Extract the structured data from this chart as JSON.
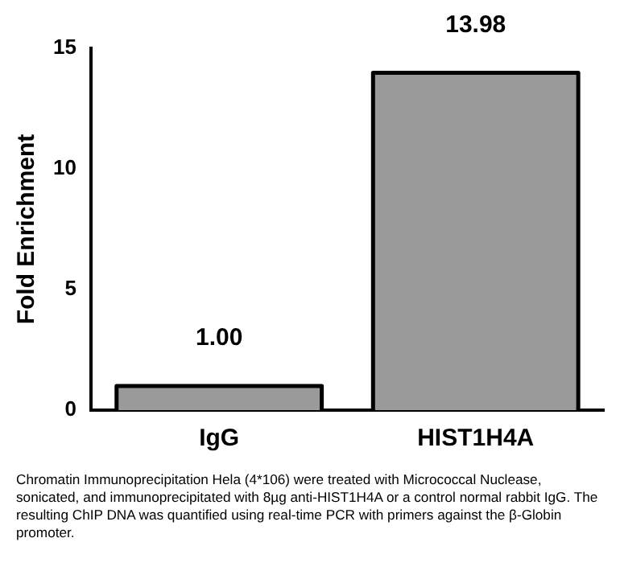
{
  "chart_data": {
    "type": "bar",
    "ylabel": "Fold Enrichment",
    "categories": [
      "IgG",
      "HIST1H4A"
    ],
    "values": [
      1.0,
      13.98
    ],
    "color": "#9a9a9a",
    "value_labels": [
      "1.00",
      "13.98"
    ],
    "ylim": [
      0,
      15
    ],
    "yticks": [
      0,
      5,
      10,
      15
    ],
    "grid": false,
    "annotations": [
      "Chromatin Immunoprecipitation Hela (4*106) were treated with Micrococcal Nuclease, sonicated, and immunoprecipitated with 8µg anti-HIST1H4A or a control normal rabbit IgG. The resulting ChIP DNA was quantified using real-time PCR with primers against the β-Globin promoter."
    ]
  }
}
